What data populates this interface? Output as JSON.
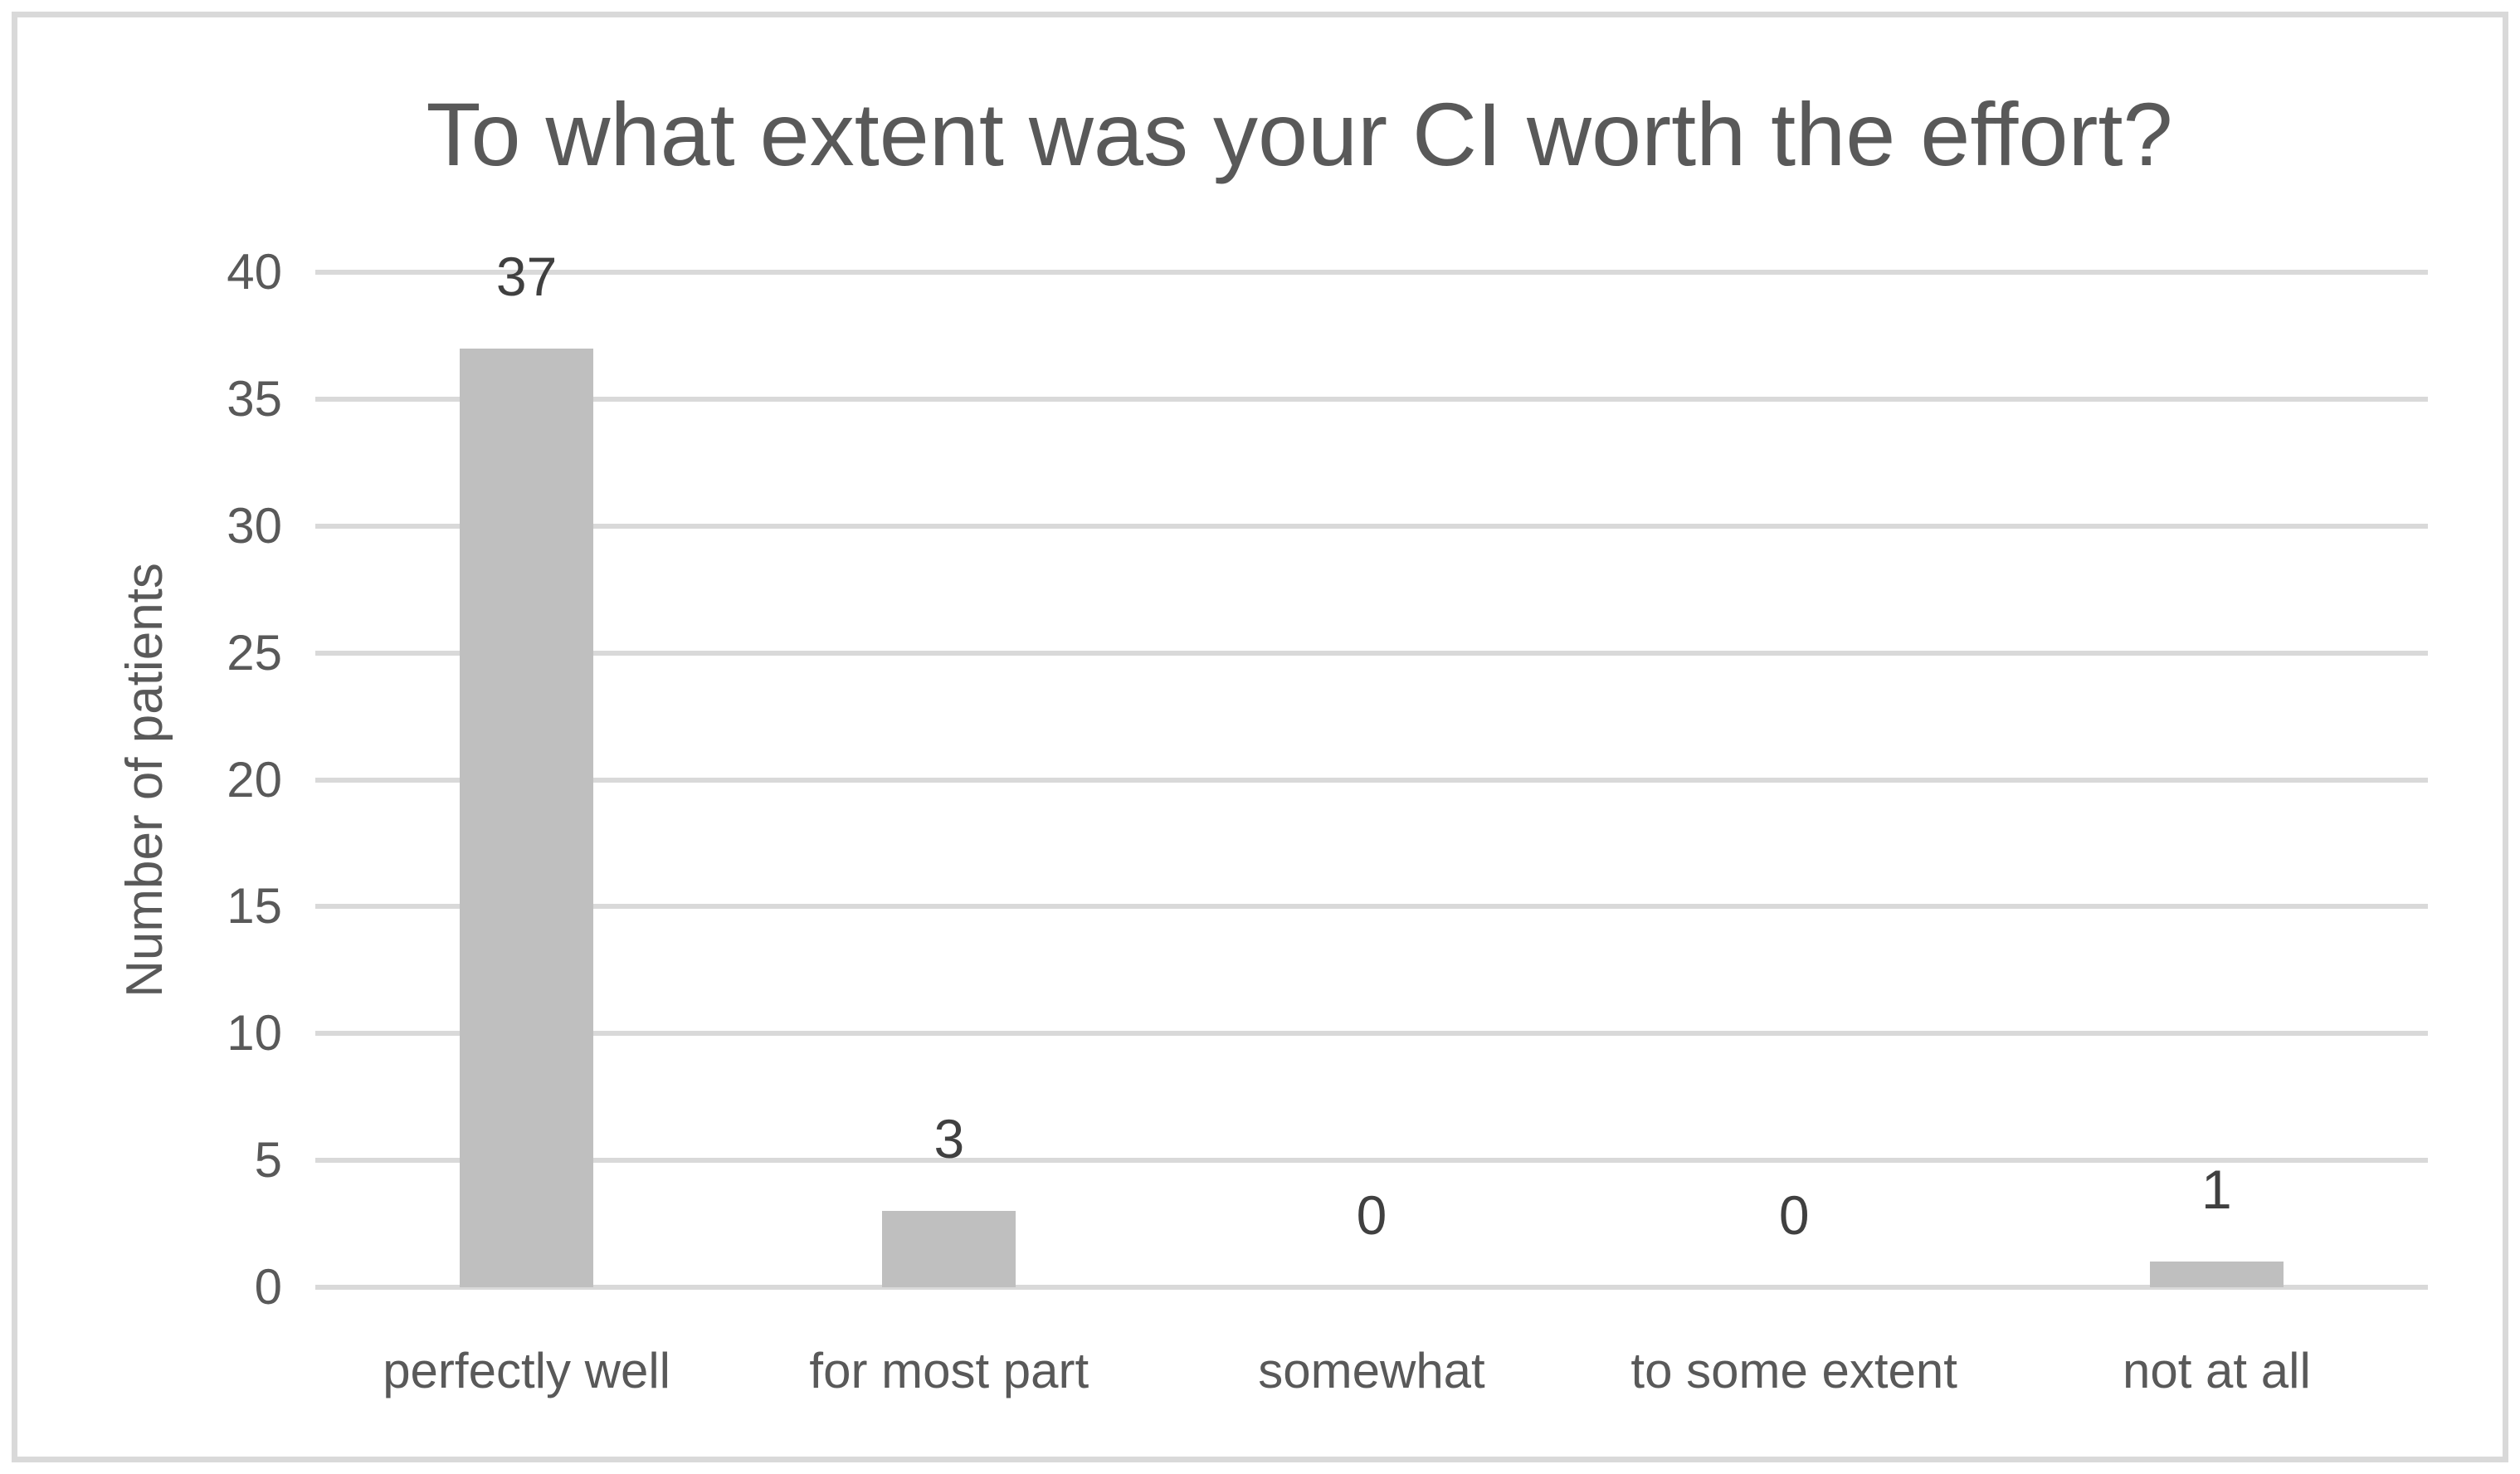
{
  "chart_data": {
    "type": "bar",
    "title": "To what extent was your CI worth the effort?",
    "xlabel": "",
    "ylabel": "Number of patients",
    "categories": [
      "perfectly well",
      "for most part",
      "somewhat",
      "to some extent",
      "not at all"
    ],
    "values": [
      37,
      3,
      0,
      0,
      1
    ],
    "data_labels": [
      "37",
      "3",
      "0",
      "0",
      "1"
    ],
    "yticks": [
      0,
      5,
      10,
      15,
      20,
      25,
      30,
      35,
      40
    ],
    "ylim": [
      0,
      40
    ],
    "grid": true,
    "legend_position": "none",
    "colors": {
      "bar_fill": "#bfbfbf",
      "gridline": "#d9d9d9",
      "chart_border": "#d9d9d9",
      "title_text": "#595959",
      "axis_text": "#595959",
      "data_label_text": "#404040",
      "background": "#ffffff"
    }
  }
}
